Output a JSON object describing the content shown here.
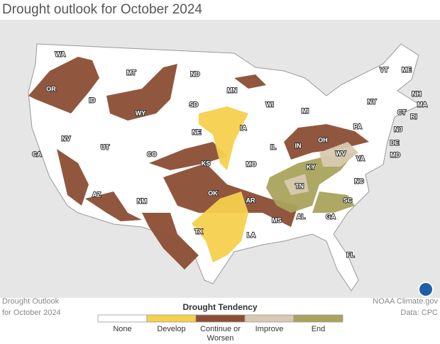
{
  "title": "Drought outlook for October 2024",
  "state_labels": [
    "WA",
    "OR",
    "ID",
    "MT",
    "ND",
    "MN",
    "WY",
    "SD",
    "NV",
    "UT",
    "CA",
    "CO",
    "NE",
    "IA",
    "WI",
    "MI",
    "VT",
    "ME",
    "NH",
    "NY",
    "MA",
    "CT",
    "RI",
    "PA",
    "NJ",
    "DE",
    "MD",
    "OH",
    "IN",
    "IL",
    "WV",
    "VA",
    "KS",
    "MO",
    "KY",
    "AZ",
    "NM",
    "OK",
    "AR",
    "TN",
    "NC",
    "SC",
    "GA",
    "AL",
    "MS",
    "LA",
    "TX",
    "FL"
  ],
  "legend": {
    "title": "Drought Tendency",
    "items": [
      {
        "label": "None",
        "color": "#ffffff"
      },
      {
        "label": "Develop",
        "color": "#f6d04d"
      },
      {
        "label": "Continue or Worsen",
        "color": "#8b4e34"
      },
      {
        "label": "Improve",
        "color": "#d8c9b1"
      },
      {
        "label": "End",
        "color": "#a9a35c"
      }
    ]
  },
  "footer_left": [
    "Drought Outlook",
    "for October 2024"
  ],
  "footer_right": [
    "NOAA Climate.gov",
    "Data: CPC"
  ]
}
